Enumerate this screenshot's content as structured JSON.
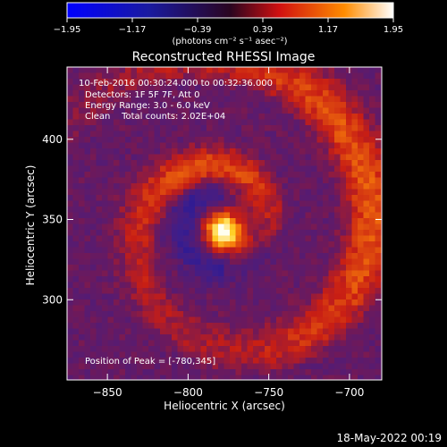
{
  "chart_data": {
    "type": "heatmap",
    "title": "Reconstructed RHESSI Image",
    "xlabel": "Heliocentric X (arcsec)",
    "ylabel": "Heliocentric Y (arcsec)",
    "xlim": [
      -875,
      -680
    ],
    "ylim": [
      250,
      445
    ],
    "x_ticks": [
      -850,
      -800,
      -750,
      -700
    ],
    "y_ticks": [
      300,
      350,
      400
    ],
    "x_tick_labels": [
      "−850",
      "−800",
      "−750",
      "−700"
    ],
    "y_tick_labels": [
      "300",
      "350",
      "400"
    ],
    "colorbar": {
      "ticks": [
        -1.95,
        -1.17,
        -0.39,
        0.39,
        1.17,
        1.95
      ],
      "tick_labels": [
        "−1.95",
        "−1.17",
        "−0.39",
        "0.39",
        "1.17",
        "1.95"
      ],
      "vmin": -1.95,
      "vmax": 1.95,
      "unit_label": "(photons cm⁻² s⁻¹ asec⁻²)"
    },
    "annotations": [
      "10-Feb-2016 00:30:24.000 to 00:32:36.000",
      "Detectors: 1F 5F 7F, Att 0",
      "Energy Range: 3.0 - 6.0 keV",
      "Clean    Total counts: 2.02E+04",
      "Position of Peak = [-780,345]"
    ],
    "peak": {
      "x": -780,
      "y": 345
    },
    "grid": false,
    "timestamp": "18-May-2022 00:19"
  }
}
